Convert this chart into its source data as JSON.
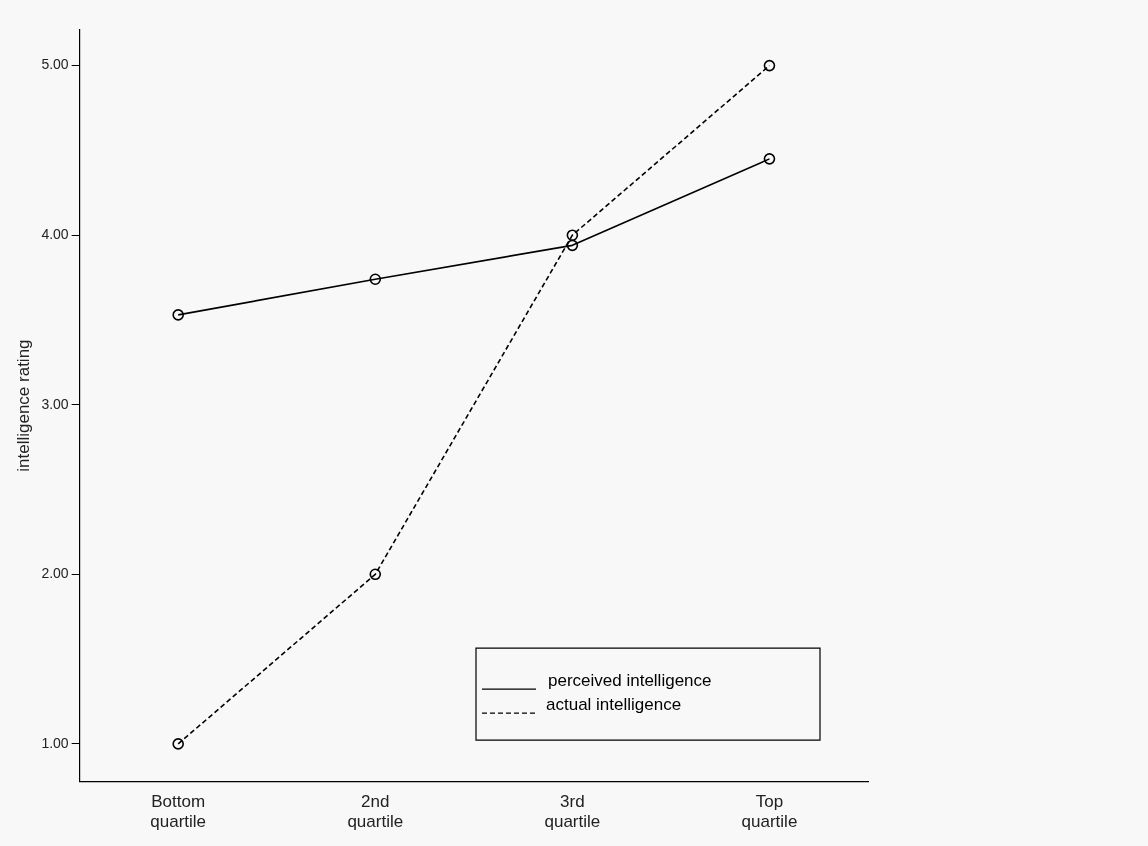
{
  "chart_data": {
    "type": "line",
    "ylabel": "intelligence rating",
    "categories": [
      "Bottom\nquartile",
      "2nd\nquartile",
      "3rd\nquartile",
      "Top\nquartile"
    ],
    "series": [
      {
        "name": "perceived intelligence",
        "color": "#000000",
        "line_style": "solid",
        "values": [
          3.53,
          3.74,
          3.94,
          4.45
        ]
      },
      {
        "name": "actual intelligence",
        "color": "#000000",
        "line_style": "dashed",
        "values": [
          1,
          2,
          4,
          5
        ]
      }
    ],
    "ylim": [
      0.78,
      5.21
    ],
    "yticks": [
      {
        "value": 1,
        "label": "1.00"
      },
      {
        "value": 2,
        "label": "2.00"
      },
      {
        "value": 3,
        "label": "3.00"
      },
      {
        "value": 4,
        "label": "4.00"
      },
      {
        "value": 5,
        "label": "5.00"
      }
    ],
    "grid": false,
    "legend": "bottom right",
    "marker": "circle"
  }
}
